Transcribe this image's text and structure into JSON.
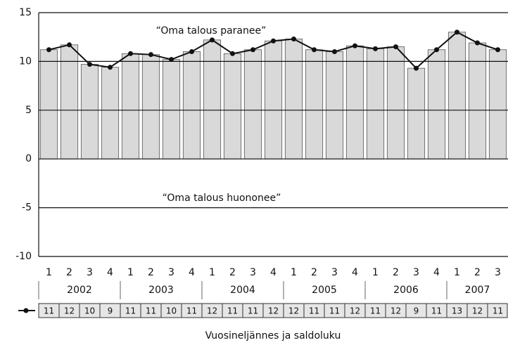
{
  "chart_data": {
    "type": "bar",
    "annotations": [
      "“Oma talous paranee”",
      "“Oma talous huononee”"
    ],
    "x_label": "Vuosineljännes ja saldoluku",
    "categories": [
      "1",
      "2",
      "3",
      "4",
      "1",
      "2",
      "3",
      "4",
      "1",
      "2",
      "3",
      "4",
      "1",
      "2",
      "3",
      "4",
      "1",
      "2",
      "3",
      "4",
      "1",
      "2",
      "3"
    ],
    "years": [
      "2002",
      "2003",
      "2004",
      "2005",
      "2006",
      "2007"
    ],
    "values": [
      11.2,
      11.7,
      9.7,
      9.4,
      10.8,
      10.7,
      10.2,
      11.0,
      12.2,
      10.8,
      11.2,
      12.1,
      12.3,
      11.2,
      11.0,
      11.6,
      11.3,
      11.5,
      9.3,
      11.2,
      13.0,
      11.9,
      11.2
    ],
    "table_values": [
      11,
      12,
      10,
      9,
      11,
      11,
      10,
      11,
      12,
      11,
      11,
      12,
      12,
      11,
      11,
      12,
      11,
      12,
      9,
      11,
      13,
      12,
      11
    ],
    "color": "#d9d9d9",
    "line_color": "#111111",
    "ylim": [
      -10,
      15
    ],
    "yticks": [
      -10,
      -5,
      0,
      5,
      10,
      15
    ],
    "grid": true
  }
}
